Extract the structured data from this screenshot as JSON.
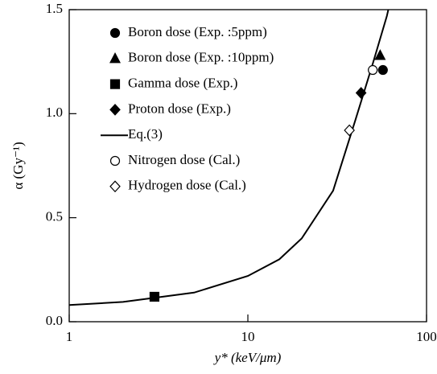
{
  "chart_data": {
    "type": "scatter",
    "xlabel": "y* (keV/μm)",
    "ylabel": "α (Gy⁻¹)",
    "xscale": "log",
    "xlim": [
      1,
      100
    ],
    "xticks": [
      1,
      10,
      100
    ],
    "ylim": [
      0,
      1.5
    ],
    "yticks": [
      {
        "value": 0,
        "label": "0.0"
      },
      {
        "value": 0.5,
        "label": "0.5"
      },
      {
        "value": 1,
        "label": "1.0"
      },
      {
        "value": 1.5,
        "label": "1.5"
      }
    ],
    "legend": "upper left",
    "series": [
      {
        "name": "Boron dose (Exp. :5ppm)",
        "kind": "marker",
        "marker": "circle",
        "filled": true,
        "color": "#000000",
        "x": [
          57
        ],
        "values": [
          1.21
        ]
      },
      {
        "name": "Boron dose (Exp. :10ppm)",
        "kind": "marker",
        "marker": "triangle",
        "filled": true,
        "color": "#000000",
        "x": [
          55
        ],
        "values": [
          1.28
        ]
      },
      {
        "name": "Gamma dose (Exp.)",
        "kind": "marker",
        "marker": "square",
        "filled": true,
        "color": "#000000",
        "x": [
          3
        ],
        "values": [
          0.12
        ]
      },
      {
        "name": "Proton dose (Exp.)",
        "kind": "marker",
        "marker": "diamond",
        "filled": true,
        "color": "#000000",
        "x": [
          43
        ],
        "values": [
          1.1
        ]
      },
      {
        "name": "Eq.(3)",
        "kind": "line",
        "color": "#000000",
        "x": [
          1,
          2,
          3,
          5,
          10,
          15,
          20,
          30,
          40,
          50,
          60,
          63
        ],
        "values": [
          0.08,
          0.095,
          0.115,
          0.14,
          0.22,
          0.3,
          0.4,
          0.63,
          0.97,
          1.24,
          1.47,
          1.55
        ]
      },
      {
        "name": "Nitrogen dose (Cal.)",
        "kind": "marker",
        "marker": "circle",
        "filled": false,
        "color": "#000000",
        "x": [
          50
        ],
        "values": [
          1.21
        ]
      },
      {
        "name": "Hydrogen dose (Cal.)",
        "kind": "marker",
        "marker": "diamond",
        "filled": false,
        "color": "#000000",
        "x": [
          37
        ],
        "values": [
          0.92
        ]
      }
    ]
  }
}
